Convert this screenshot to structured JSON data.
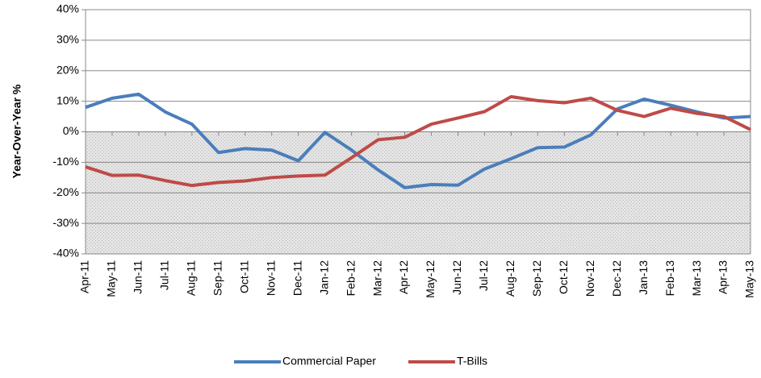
{
  "chart_data": {
    "type": "line",
    "y_label": "Year-Over-Year %",
    "categories": [
      "Apr-11",
      "May-11",
      "Jun-11",
      "Jul-11",
      "Aug-11",
      "Sep-11",
      "Oct-11",
      "Nov-11",
      "Dec-11",
      "Jan-12",
      "Feb-12",
      "Mar-12",
      "Apr-12",
      "May-12",
      "Jun-12",
      "Jul-12",
      "Aug-12",
      "Sep-12",
      "Oct-12",
      "Nov-12",
      "Dec-12",
      "Jan-13",
      "Feb-13",
      "Mar-13",
      "Apr-13",
      "May-13"
    ],
    "series": [
      {
        "name": "Commercial Paper",
        "color": "#4a7ebb",
        "values": [
          8,
          11,
          12.3,
          6.5,
          2.5,
          -6.8,
          -5.5,
          -6,
          -9.5,
          -0.2,
          -6,
          -12.5,
          -18.3,
          -17.3,
          -17.5,
          -12.2,
          -8.8,
          -5.2,
          -5,
          -1,
          7.5,
          10.7,
          8.7,
          6.5,
          4.5,
          5
        ]
      },
      {
        "name": "T-Bills",
        "color": "#be4b48",
        "values": [
          -11.5,
          -14.3,
          -14.2,
          -16,
          -17.6,
          -16.6,
          -16.1,
          -15,
          -14.5,
          -14.2,
          -8.5,
          -2.6,
          -1.8,
          2.5,
          4.5,
          6.6,
          11.5,
          10.2,
          9.5,
          11,
          7,
          5,
          7.7,
          6,
          5,
          0.7
        ]
      }
    ],
    "ylim": [
      -40,
      40
    ],
    "yticks": [
      {
        "value": -40,
        "label": "-40%"
      },
      {
        "value": -30,
        "label": "-30%"
      },
      {
        "value": -20,
        "label": "-20%"
      },
      {
        "value": -10,
        "label": "-10%"
      },
      {
        "value": 0,
        "label": "0%"
      },
      {
        "value": 10,
        "label": "10%"
      },
      {
        "value": 20,
        "label": "20%"
      },
      {
        "value": 30,
        "label": "30%"
      },
      {
        "value": 40,
        "label": "40%"
      }
    ],
    "grid": true,
    "legend": "bottom"
  }
}
